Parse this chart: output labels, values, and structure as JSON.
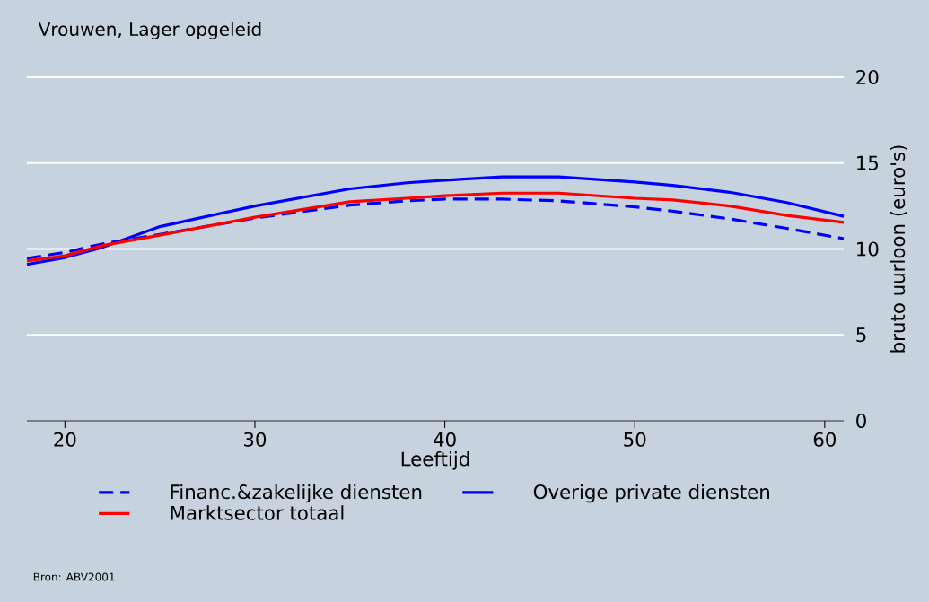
{
  "chart_data": {
    "type": "line",
    "title": "Vrouwen, Lager opgeleid",
    "xlabel": "Leeftijd",
    "ylabel": "bruto uurloon (euro's)",
    "x": [
      18,
      20,
      22,
      25,
      30,
      35,
      38,
      40,
      43,
      46,
      50,
      52,
      55,
      58,
      61
    ],
    "series": [
      {
        "name": "Financ.&zakelijke diensten",
        "color": "#0000ff",
        "line_style": "dashed",
        "values": [
          9.45,
          9.8,
          10.3,
          10.85,
          11.8,
          12.55,
          12.8,
          12.9,
          12.9,
          12.8,
          12.45,
          12.2,
          11.75,
          11.2,
          10.6
        ]
      },
      {
        "name": "Overige private diensten",
        "color": "#0000ff",
        "line_style": "solid",
        "values": [
          9.1,
          9.5,
          10.1,
          11.3,
          12.5,
          13.5,
          13.85,
          14.0,
          14.2,
          14.2,
          13.9,
          13.7,
          13.3,
          12.7,
          11.9
        ]
      },
      {
        "name": "Marktsector totaal",
        "color": "#ff0000",
        "line_style": "solid",
        "values": [
          9.3,
          9.6,
          10.2,
          10.8,
          11.85,
          12.75,
          12.95,
          13.1,
          13.25,
          13.25,
          12.95,
          12.85,
          12.5,
          11.95,
          11.55
        ]
      }
    ],
    "xlim": [
      18,
      61
    ],
    "xticks": [
      20,
      30,
      40,
      50,
      60
    ],
    "ylim": [
      0,
      20
    ],
    "yticks": [
      0,
      5,
      10,
      15,
      20
    ],
    "grid": "y",
    "legend": "bottom",
    "marker": "none",
    "annotations": [
      "Bron: ABV2001"
    ]
  }
}
